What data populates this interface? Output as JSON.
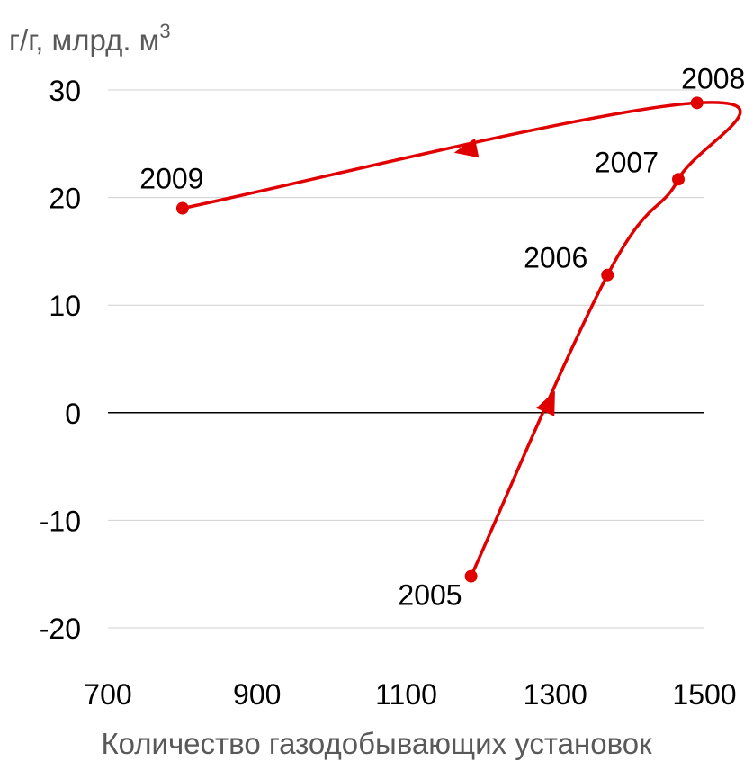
{
  "chart_data": {
    "type": "line",
    "ylabel": "г/г, млрд. м",
    "ylabel_superscript": "3",
    "xlabel": "Количество газодобывающих установок",
    "xlim": [
      700,
      1500
    ],
    "ylim": [
      -20,
      30
    ],
    "x_ticks": [
      "700",
      "900",
      "1100",
      "1300",
      "1500"
    ],
    "y_ticks": [
      "30",
      "20",
      "10",
      "0",
      "-10",
      "-20"
    ],
    "grid": true,
    "legend": "none",
    "series": [
      {
        "color": "#e00000",
        "points": [
          {
            "label": "2005",
            "x": 1187,
            "y": -15.2
          },
          {
            "label": "2006",
            "x": 1370,
            "y": 12.8
          },
          {
            "label": "2007",
            "x": 1465,
            "y": 21.7
          },
          {
            "label": "2008",
            "x": 1490,
            "y": 28.8
          },
          {
            "label": "2009",
            "x": 800,
            "y": 19.0
          }
        ]
      }
    ],
    "annotations": [
      "arrow-up-along-2005-2006",
      "arrow-left-along-2008-2009"
    ]
  }
}
